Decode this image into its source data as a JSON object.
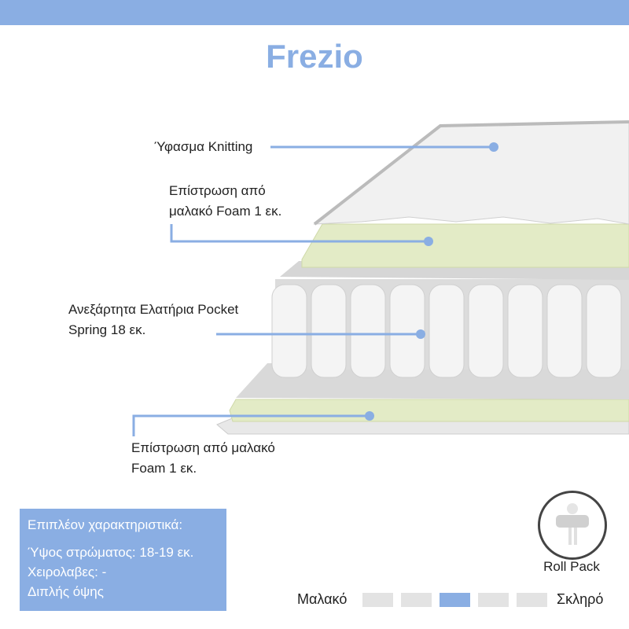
{
  "header": {
    "title": "Frezio"
  },
  "callouts": [
    {
      "text": "Ύφασμα Knitting"
    },
    {
      "line1": "Επίστρωση από",
      "line2": "μαλακό Foam 1 εκ."
    },
    {
      "line1": "Ανεξάρτητα Ελατήρια Pocket",
      "line2": "Spring 18 εκ."
    },
    {
      "line1": "Επίστρωση από μαλακό",
      "line2": "Foam 1 εκ."
    }
  ],
  "features": {
    "heading": "Επιπλέον χαρακτηριστικά:",
    "items": [
      "Ύψος στρώματος: 18-19 εκ.",
      "Χειρολαβες: -",
      "Διπλής όψης"
    ]
  },
  "roll_pack": {
    "label": "Roll Pack"
  },
  "firmness": {
    "soft_label": "Μαλακό",
    "hard_label": "Σκληρό",
    "level": 3,
    "max": 5
  },
  "colors": {
    "accent": "#8aaee3",
    "inactive": "#e3e3e3"
  }
}
